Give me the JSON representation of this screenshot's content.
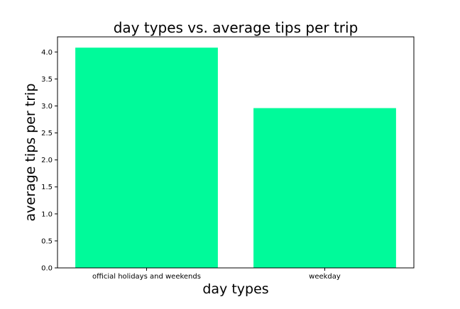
{
  "chart_data": {
    "type": "bar",
    "title": "day types vs. average tips per trip",
    "xlabel": "day types",
    "ylabel": "average tips per trip",
    "categories": [
      "official holidays and weekends",
      "weekday"
    ],
    "values": [
      4.08,
      2.96
    ],
    "ylim": [
      0,
      4.28
    ],
    "yticks": [
      "0.0",
      "0.5",
      "1.0",
      "1.5",
      "2.0",
      "2.5",
      "3.0",
      "3.5",
      "4.0"
    ],
    "ytick_values": [
      0,
      0.5,
      1.0,
      1.5,
      2.0,
      2.5,
      3.0,
      3.5,
      4.0
    ],
    "grid": false,
    "bar_color": "#00fa9a"
  }
}
